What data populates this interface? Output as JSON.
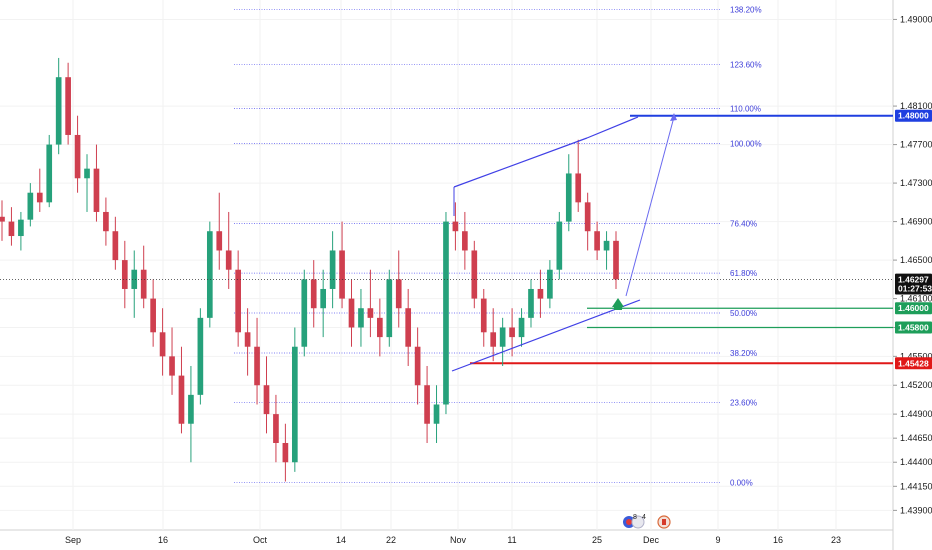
{
  "chart_data": {
    "type": "candlestick",
    "symbol_context": "Price chart with Fibonacci retracement, rising channel and projected breakout",
    "y_axis": {
      "ylim": [
        1.438,
        1.4915
      ],
      "ticks": [
        "1.49000",
        "1.48100",
        "1.47700",
        "1.47300",
        "1.46900",
        "1.46500",
        "1.46100",
        "1.45800",
        "1.45500",
        "1.45200",
        "1.44900",
        "1.44650",
        "1.44400",
        "1.44150",
        "1.43900"
      ],
      "tick_values": [
        1.49,
        1.481,
        1.477,
        1.473,
        1.469,
        1.465,
        1.461,
        1.458,
        1.455,
        1.452,
        1.449,
        1.4465,
        1.444,
        1.4415,
        1.439
      ]
    },
    "x_axis": {
      "labels": [
        "Sep",
        "16",
        "Oct",
        "14",
        "22",
        "Nov",
        "11",
        "25",
        "Dec",
        "9",
        "16",
        "23"
      ]
    },
    "fib_levels": [
      {
        "label": "138.20%",
        "price": 1.49105
      },
      {
        "label": "123.60%",
        "price": 1.4853
      },
      {
        "label": "110.00%",
        "price": 1.48075
      },
      {
        "label": "100.00%",
        "price": 1.4771
      },
      {
        "label": "76.40%",
        "price": 1.4688
      },
      {
        "label": "61.80%",
        "price": 1.46365
      },
      {
        "label": "50.00%",
        "price": 1.4595
      },
      {
        "label": "38.20%",
        "price": 1.45535
      },
      {
        "label": "23.60%",
        "price": 1.4502
      },
      {
        "label": "0.00%",
        "price": 1.4419
      }
    ],
    "price_tags": [
      {
        "label": "1.48000",
        "price": 1.48,
        "color": "#1f3fe0"
      },
      {
        "label": "1.46297",
        "price": 1.46297,
        "color": "#111111"
      },
      {
        "label": "01:27:53",
        "price": 1.46205,
        "color": "#111111"
      },
      {
        "label": "1.46000",
        "price": 1.46,
        "color": "#1e9e5a"
      },
      {
        "label": "1.45800",
        "price": 1.458,
        "color": "#1e9e5a"
      },
      {
        "label": "1.45428",
        "price": 1.45428,
        "color": "#e01818"
      }
    ],
    "horizontal_lines": [
      {
        "price": 1.48,
        "color": "#1f3fe0"
      },
      {
        "price": 1.46,
        "color": "#1e9e5a"
      },
      {
        "price": 1.458,
        "color": "#1e9e5a"
      },
      {
        "price": 1.45428,
        "color": "#e01818"
      }
    ],
    "current_price": 1.46297,
    "candles_ohlc_approx": [
      [
        1.4695,
        1.4712,
        1.467,
        1.469
      ],
      [
        1.469,
        1.4705,
        1.4665,
        1.4675
      ],
      [
        1.4675,
        1.47,
        1.466,
        1.4692
      ],
      [
        1.4692,
        1.473,
        1.4685,
        1.472
      ],
      [
        1.472,
        1.4745,
        1.47,
        1.471
      ],
      [
        1.471,
        1.478,
        1.4705,
        1.477
      ],
      [
        1.477,
        1.486,
        1.476,
        1.484
      ],
      [
        1.484,
        1.4855,
        1.477,
        1.478
      ],
      [
        1.478,
        1.48,
        1.472,
        1.4735
      ],
      [
        1.4735,
        1.476,
        1.47,
        1.4745
      ],
      [
        1.4745,
        1.477,
        1.469,
        1.47
      ],
      [
        1.47,
        1.4715,
        1.4665,
        1.468
      ],
      [
        1.468,
        1.4695,
        1.464,
        1.465
      ],
      [
        1.465,
        1.467,
        1.46,
        1.462
      ],
      [
        1.462,
        1.466,
        1.459,
        1.464
      ],
      [
        1.464,
        1.4665,
        1.46,
        1.461
      ],
      [
        1.461,
        1.463,
        1.456,
        1.4575
      ],
      [
        1.4575,
        1.46,
        1.453,
        1.455
      ],
      [
        1.455,
        1.458,
        1.451,
        1.453
      ],
      [
        1.453,
        1.456,
        1.447,
        1.448
      ],
      [
        1.448,
        1.454,
        1.444,
        1.451
      ],
      [
        1.451,
        1.46,
        1.45,
        1.459
      ],
      [
        1.459,
        1.469,
        1.458,
        1.468
      ],
      [
        1.468,
        1.472,
        1.464,
        1.466
      ],
      [
        1.466,
        1.47,
        1.462,
        1.464
      ],
      [
        1.464,
        1.466,
        1.456,
        1.4575
      ],
      [
        1.4575,
        1.46,
        1.453,
        1.456
      ],
      [
        1.456,
        1.459,
        1.45,
        1.452
      ],
      [
        1.452,
        1.455,
        1.447,
        1.449
      ],
      [
        1.449,
        1.451,
        1.444,
        1.446
      ],
      [
        1.446,
        1.448,
        1.442,
        1.444
      ],
      [
        1.444,
        1.458,
        1.443,
        1.456
      ],
      [
        1.456,
        1.464,
        1.455,
        1.463
      ],
      [
        1.463,
        1.465,
        1.458,
        1.46
      ],
      [
        1.46,
        1.464,
        1.457,
        1.462
      ],
      [
        1.462,
        1.468,
        1.46,
        1.466
      ],
      [
        1.466,
        1.469,
        1.46,
        1.461
      ],
      [
        1.461,
        1.463,
        1.456,
        1.458
      ],
      [
        1.458,
        1.462,
        1.456,
        1.46
      ],
      [
        1.46,
        1.464,
        1.457,
        1.459
      ],
      [
        1.459,
        1.461,
        1.455,
        1.457
      ],
      [
        1.457,
        1.464,
        1.456,
        1.463
      ],
      [
        1.463,
        1.466,
        1.458,
        1.46
      ],
      [
        1.46,
        1.462,
        1.454,
        1.456
      ],
      [
        1.456,
        1.458,
        1.45,
        1.452
      ],
      [
        1.452,
        1.454,
        1.446,
        1.448
      ],
      [
        1.448,
        1.452,
        1.446,
        1.45
      ],
      [
        1.45,
        1.47,
        1.449,
        1.469
      ],
      [
        1.469,
        1.471,
        1.466,
        1.468
      ],
      [
        1.468,
        1.47,
        1.464,
        1.466
      ],
      [
        1.466,
        1.467,
        1.46,
        1.461
      ],
      [
        1.461,
        1.462,
        1.456,
        1.4575
      ],
      [
        1.4575,
        1.46,
        1.4545,
        1.456
      ],
      [
        1.456,
        1.459,
        1.454,
        1.458
      ],
      [
        1.458,
        1.46,
        1.455,
        1.457
      ],
      [
        1.457,
        1.46,
        1.456,
        1.459
      ],
      [
        1.459,
        1.463,
        1.458,
        1.462
      ],
      [
        1.462,
        1.464,
        1.459,
        1.461
      ],
      [
        1.461,
        1.465,
        1.46,
        1.464
      ],
      [
        1.464,
        1.47,
        1.463,
        1.469
      ],
      [
        1.469,
        1.476,
        1.468,
        1.474
      ],
      [
        1.474,
        1.4775,
        1.47,
        1.471
      ],
      [
        1.471,
        1.472,
        1.466,
        1.468
      ],
      [
        1.468,
        1.469,
        1.465,
        1.466
      ],
      [
        1.466,
        1.468,
        1.464,
        1.467
      ],
      [
        1.467,
        1.468,
        1.462,
        1.463
      ]
    ]
  },
  "branding": {
    "watermark_icons": [
      "flag-badge-icon",
      "currency-badge-icon",
      "canada-flag-icon"
    ],
    "badge_number": "8",
    "badge_number2": "4"
  },
  "colors": {
    "up": "#26a17b",
    "down": "#cf3f4f",
    "fib": "#5a5af0",
    "channel": "#4040e6",
    "projection": "#6a6af0",
    "target_arrow": "#1e9e5a"
  }
}
